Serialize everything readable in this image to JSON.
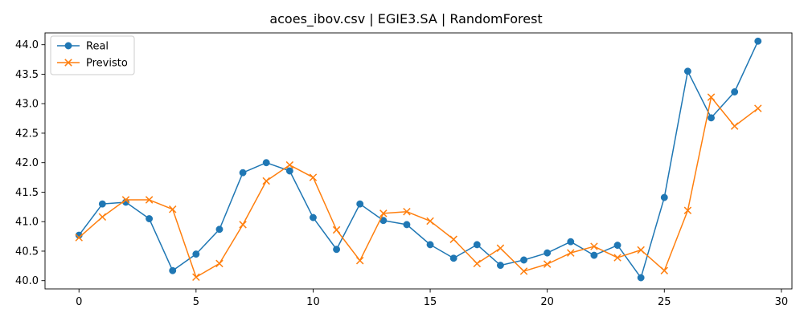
{
  "chart_data": {
    "type": "line",
    "title": "acoes_ibov.csv | EGIE3.SA | RandomForest",
    "xlabel": "",
    "ylabel": "",
    "x": [
      0,
      1,
      2,
      3,
      4,
      5,
      6,
      7,
      8,
      9,
      10,
      11,
      12,
      13,
      14,
      15,
      16,
      17,
      18,
      19,
      20,
      21,
      22,
      23,
      24,
      25,
      26,
      27,
      28,
      29
    ],
    "xlim": [
      -1.45,
      30.45
    ],
    "ylim": [
      39.86,
      44.2
    ],
    "xticks": [
      0,
      5,
      10,
      15,
      20,
      25,
      30
    ],
    "xtick_labels": [
      "0",
      "5",
      "10",
      "15",
      "20",
      "25",
      "30"
    ],
    "yticks": [
      40.0,
      40.5,
      41.0,
      41.5,
      42.0,
      42.5,
      43.0,
      43.5,
      44.0
    ],
    "ytick_labels": [
      "40.0",
      "40.5",
      "41.0",
      "41.5",
      "42.0",
      "42.5",
      "43.0",
      "43.5",
      "44.0"
    ],
    "grid": false,
    "legend_position": "top-left",
    "series": [
      {
        "name": "Real",
        "marker": "circle",
        "color": "#1f77b4",
        "values": [
          40.77,
          41.3,
          41.33,
          41.05,
          40.17,
          40.45,
          40.87,
          41.83,
          42.0,
          41.86,
          41.07,
          40.53,
          41.3,
          41.02,
          40.95,
          40.61,
          40.38,
          40.61,
          40.26,
          40.35,
          40.47,
          40.66,
          40.43,
          40.6,
          40.05,
          41.41,
          43.55,
          42.76,
          43.2,
          44.06
        ]
      },
      {
        "name": "Previsto",
        "marker": "x",
        "color": "#ff7f0e",
        "values": [
          40.73,
          41.08,
          41.37,
          41.37,
          41.21,
          40.06,
          40.29,
          40.95,
          41.69,
          41.96,
          41.75,
          40.86,
          40.34,
          41.14,
          41.17,
          41.01,
          40.7,
          40.29,
          40.55,
          40.16,
          40.28,
          40.47,
          40.58,
          40.39,
          40.52,
          40.17,
          41.19,
          43.11,
          42.62,
          42.92
        ]
      }
    ]
  }
}
